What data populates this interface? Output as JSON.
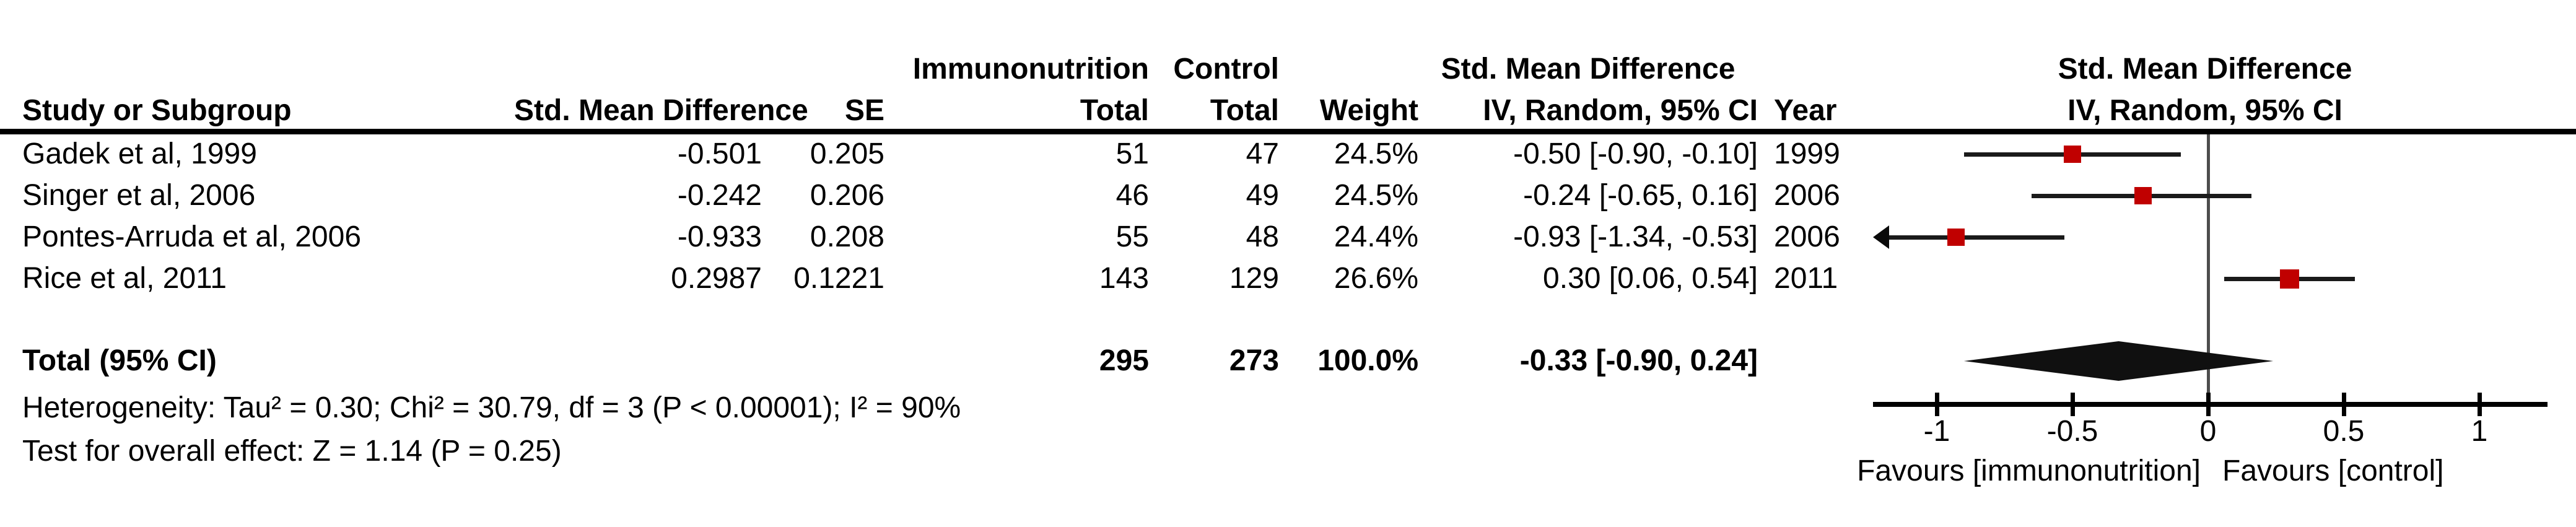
{
  "headers": {
    "study": "Study or Subgroup",
    "smd": "Std. Mean Difference",
    "se": "SE",
    "group1": "Immunonutrition",
    "group2": "Control",
    "total": "Total",
    "weight": "Weight",
    "method": "IV, Random, 95% CI",
    "year": "Year",
    "effect": "Std. Mean Difference"
  },
  "table_rows": [
    {
      "name": "Gadek et al, 1999",
      "smd": "-0.501",
      "se": "0.205",
      "immuno_total": "51",
      "control_total": "47",
      "weight": "24.5%",
      "ci": "-0.50 [-0.90, -0.10]",
      "year": "1999"
    },
    {
      "name": "Singer et al, 2006",
      "smd": "-0.242",
      "se": "0.206",
      "immuno_total": "46",
      "control_total": "49",
      "weight": "24.5%",
      "ci": "-0.24 [-0.65, 0.16]",
      "year": "2006"
    },
    {
      "name": "Pontes-Arruda et al, 2006",
      "smd": "-0.933",
      "se": "0.208",
      "immuno_total": "55",
      "control_total": "48",
      "weight": "24.4%",
      "ci": "-0.93 [-1.34, -0.53]",
      "year": "2006"
    },
    {
      "name": "Rice et al, 2011",
      "smd": "0.2987",
      "se": "0.1221",
      "immuno_total": "143",
      "control_total": "129",
      "weight": "26.6%",
      "ci": "0.30 [0.06, 0.54]",
      "year": "2011"
    }
  ],
  "totals": {
    "label": "Total (95% CI)",
    "immuno_total": "295",
    "control_total": "273",
    "weight": "100.0%",
    "ci": "-0.33 [-0.90, 0.24]"
  },
  "footnotes": {
    "heterogeneity": "Heterogeneity: Tau² = 0.30; Chi² = 30.79, df = 3 (P < 0.00001); I² = 90%",
    "overall_effect": "Test for overall effect: Z = 1.14 (P = 0.25)"
  },
  "chart_data": {
    "type": "scatter",
    "subtype": "forest-plot",
    "title": "",
    "effect_measure": "Std. Mean Difference, IV, Random, 95% CI",
    "studies": [
      {
        "name": "Gadek et al, 1999",
        "year": 1999,
        "est": -0.5,
        "lo": -0.9,
        "hi": -0.1,
        "weight_pct": 24.5
      },
      {
        "name": "Singer et al, 2006",
        "year": 2006,
        "est": -0.24,
        "lo": -0.65,
        "hi": 0.16,
        "weight_pct": 24.5
      },
      {
        "name": "Pontes-Arruda et al, 2006",
        "year": 2006,
        "est": -0.93,
        "lo": -1.34,
        "hi": -0.53,
        "weight_pct": 24.4
      },
      {
        "name": "Rice et al, 2011",
        "year": 2011,
        "est": 0.3,
        "lo": 0.06,
        "hi": 0.54,
        "weight_pct": 26.6
      }
    ],
    "total": {
      "label": "Total (95% CI)",
      "est": -0.33,
      "lo": -0.9,
      "hi": 0.24,
      "weight_pct": 100.0
    },
    "axis": {
      "ticks": [
        -1,
        -0.5,
        0,
        0.5,
        1
      ],
      "tick_labels": [
        "-1",
        "-0.5",
        "0",
        "0.5",
        "1"
      ],
      "left_label": "Favours [immunonutrition]",
      "right_label": "Favours [control]",
      "grid": false,
      "zero_line": true
    },
    "marker_color": "#c00000",
    "diamond_color": "#101010"
  }
}
